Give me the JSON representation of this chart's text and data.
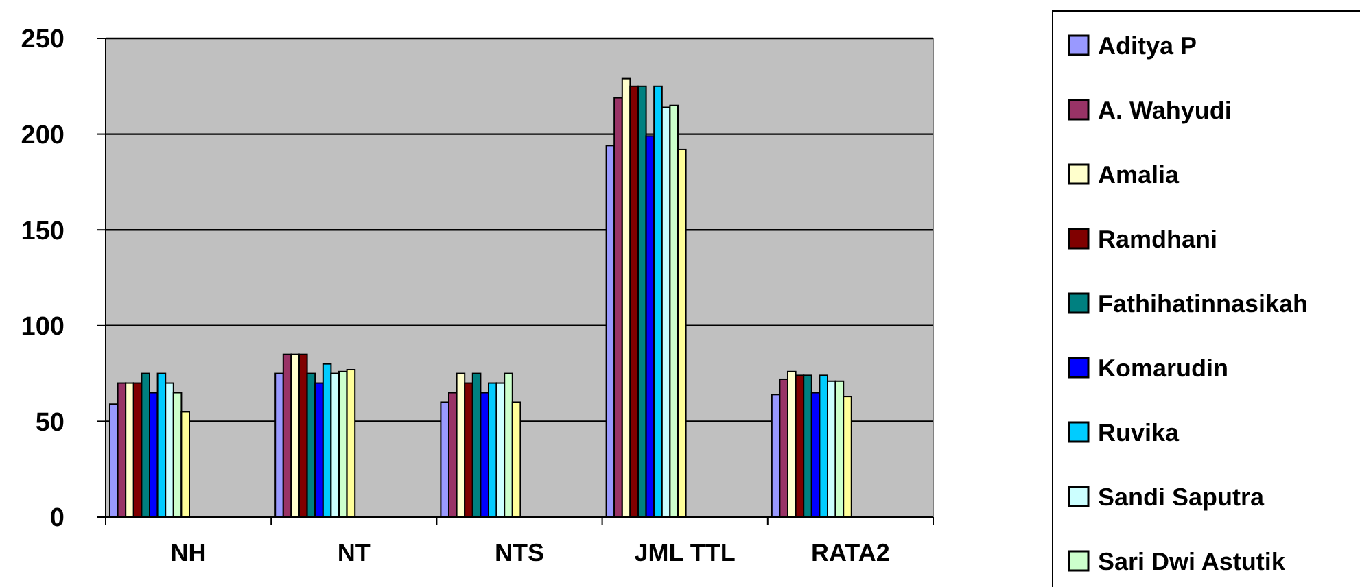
{
  "chart_data": {
    "type": "bar",
    "categories": [
      "NH",
      "NT",
      "NTS",
      "JML TTL",
      "RATA2"
    ],
    "series": [
      {
        "name": "Aditya P",
        "color": "#9999ff",
        "values": [
          59,
          75,
          60,
          194,
          64
        ]
      },
      {
        "name": "A. Wahyudi",
        "color": "#993366",
        "values": [
          70,
          85,
          65,
          219,
          72
        ]
      },
      {
        "name": "Amalia",
        "color": "#ffffcc",
        "values": [
          70,
          85,
          75,
          229,
          76
        ]
      },
      {
        "name": "Ramdhani",
        "color": "#800000",
        "values": [
          70,
          85,
          70,
          225,
          74
        ]
      },
      {
        "name": "Fathihatinnasikah",
        "color": "#008080",
        "values": [
          75,
          75,
          75,
          225,
          74
        ]
      },
      {
        "name": "Komarudin",
        "color": "#0000ff",
        "values": [
          65,
          70,
          65,
          199,
          65
        ]
      },
      {
        "name": "Ruvika",
        "color": "#00ccff",
        "values": [
          75,
          80,
          70,
          225,
          74
        ]
      },
      {
        "name": "Sandi Saputra",
        "color": "#ccffff",
        "values": [
          70,
          75,
          70,
          214,
          71
        ]
      },
      {
        "name": "Sari Dwi Astutik",
        "color": "#ccffcc",
        "values": [
          65,
          76,
          75,
          215,
          71
        ]
      },
      {
        "color": "#ffff99",
        "values": [
          55,
          77,
          60,
          192,
          63
        ]
      }
    ],
    "ylim": [
      0,
      250
    ],
    "yticks": [
      0,
      50,
      100,
      150,
      200,
      250
    ],
    "grid": "y",
    "legend": "right"
  }
}
